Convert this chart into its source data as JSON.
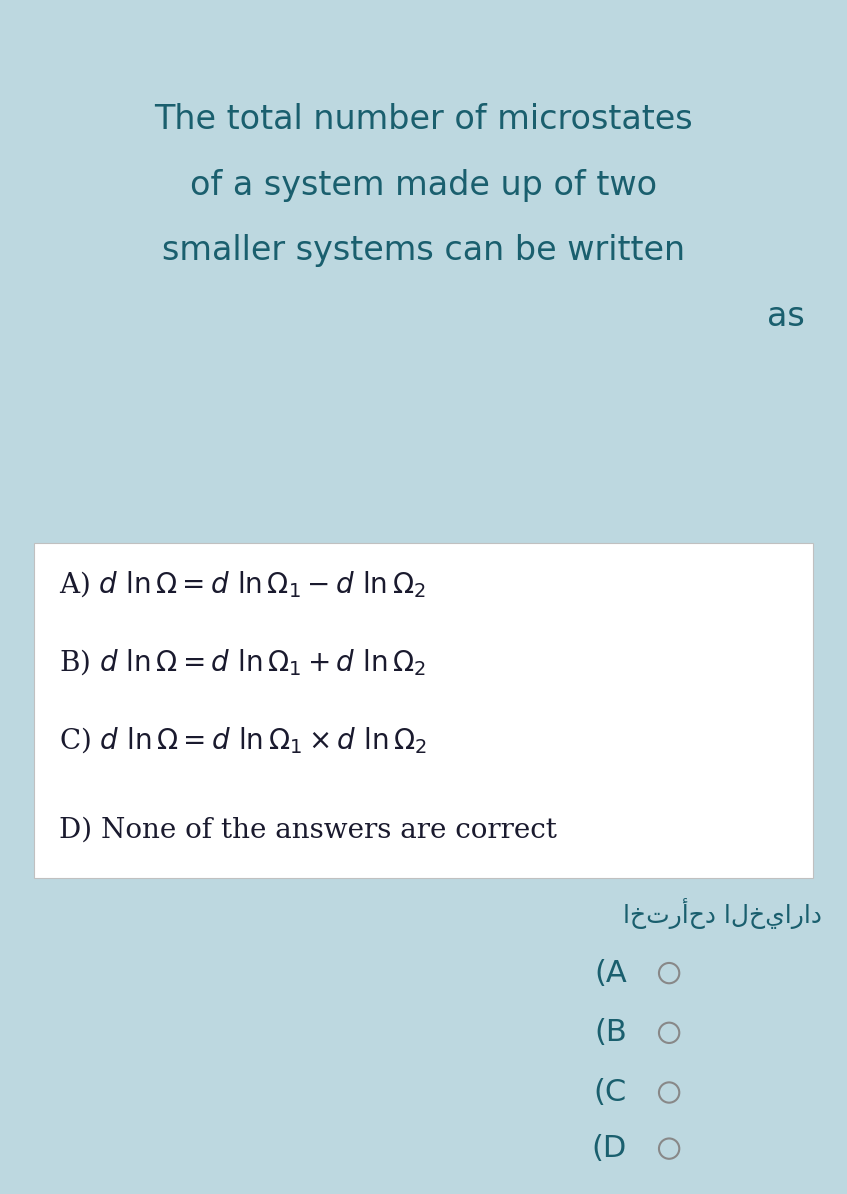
{
  "bg_color": "#bdd8e0",
  "white_box_color": "#ffffff",
  "text_color": "#1a5f6e",
  "dark_text": "#1a1a2e",
  "title_lines": [
    "The total number of microstates",
    "of a system made up of two",
    "smaller systems can be written"
  ],
  "title_as": "as",
  "arabic_text": "اخترأحد الخياراد",
  "radio_labels": [
    "(A",
    "(B",
    "(C",
    "(D"
  ],
  "figure_width": 8.47,
  "figure_height": 11.94,
  "dpi": 100,
  "title_fontsize": 24,
  "option_fontsize": 20,
  "radio_fontsize": 22
}
